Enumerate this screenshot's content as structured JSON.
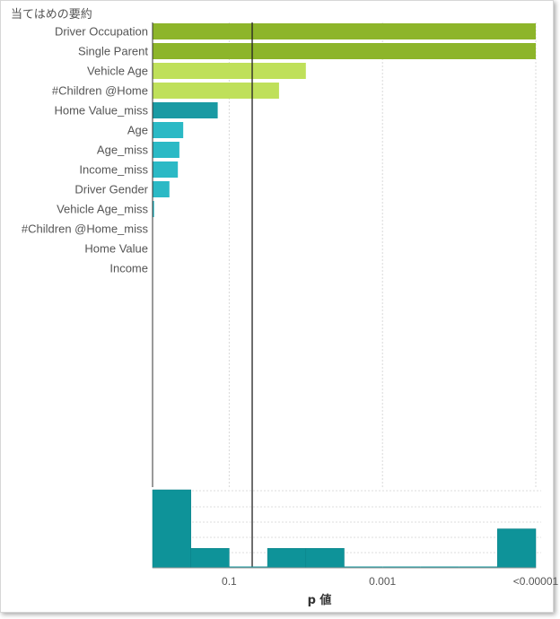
{
  "title": "当てはめの要約",
  "chart_data": [
    {
      "type": "bar",
      "orientation": "horizontal",
      "scale": "-log10(p)",
      "categories": [
        "Driver Occupation",
        "Single Parent",
        "Vehicle Age",
        "#Children @Home",
        "Home Value_miss",
        "Age",
        "Age_miss",
        "Income_miss",
        "Driver Gender",
        "Vehicle Age_miss",
        "#Children @Home_miss",
        "Home Value",
        "Income"
      ],
      "values": [
        5.0,
        5.0,
        2.0,
        1.65,
        0.85,
        0.4,
        0.35,
        0.33,
        0.22,
        0.02,
        0,
        0,
        0
      ],
      "colors": [
        "#8db52a",
        "#8db52a",
        "#bfe05a",
        "#bfe05a",
        "#1a9aa3",
        "#2bb9c5",
        "#2bb9c5",
        "#2bb9c5",
        "#2bb9c5",
        "#2bb9c5",
        "#2bb9c5",
        "#2bb9c5",
        "#2bb9c5"
      ],
      "reference_line": 1.3,
      "xlim": [
        0,
        5
      ]
    },
    {
      "type": "bar",
      "orientation": "histogram",
      "bins": [
        0,
        0.5,
        1,
        1.5,
        2,
        2.5,
        3,
        3.5,
        4,
        4.5,
        5
      ],
      "counts": [
        8,
        2,
        0,
        2,
        2,
        0,
        0,
        0,
        0,
        4
      ],
      "xlabel": "p 値",
      "tick_labels": [
        "0.1",
        "0.001",
        "<0.00001"
      ],
      "tick_positions": [
        1,
        3,
        5
      ],
      "color": "#0e9399"
    }
  ]
}
